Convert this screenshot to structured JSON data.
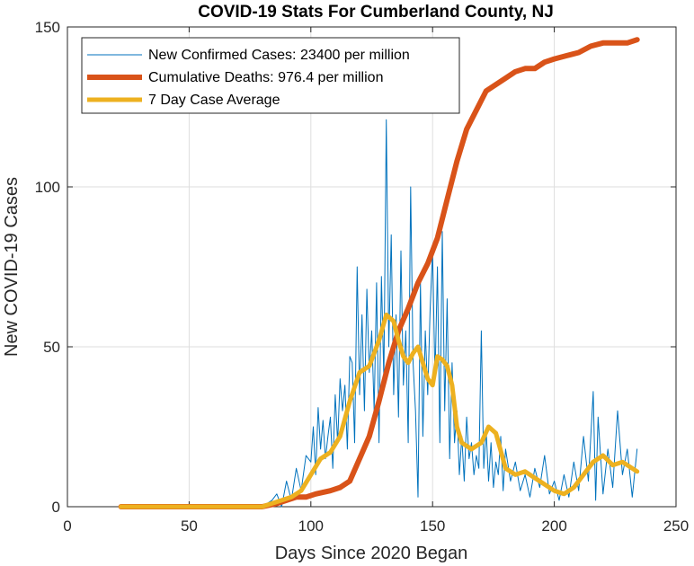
{
  "chart_data": {
    "type": "line",
    "title": "COVID-19 Stats For Cumberland County, NJ",
    "xlabel": "Days Since 2020 Began",
    "ylabel": "New COVID-19 Cases",
    "xlim": [
      0,
      250
    ],
    "ylim": [
      0,
      150
    ],
    "xticks": [
      0,
      50,
      100,
      150,
      200,
      250
    ],
    "yticks": [
      0,
      50,
      100,
      150
    ],
    "grid": true,
    "legend_position": "top-left",
    "series": [
      {
        "name": "New Confirmed Cases: 23400 per million",
        "color": "#0072BD",
        "x": [
          22,
          30,
          40,
          50,
          60,
          70,
          80,
          84,
          86,
          88,
          90,
          92,
          94,
          96,
          98,
          100,
          101,
          102,
          103,
          104,
          105,
          106,
          107,
          108,
          109,
          110,
          111,
          112,
          113,
          114,
          115,
          116,
          117,
          118,
          119,
          120,
          121,
          122,
          123,
          124,
          125,
          126,
          127,
          128,
          129,
          130,
          131,
          132,
          133,
          134,
          135,
          136,
          137,
          138,
          139,
          140,
          141,
          142,
          143,
          144,
          145,
          146,
          147,
          148,
          149,
          150,
          151,
          152,
          153,
          154,
          155,
          156,
          157,
          158,
          159,
          160,
          161,
          162,
          163,
          164,
          165,
          166,
          167,
          168,
          169,
          170,
          171,
          172,
          173,
          174,
          175,
          176,
          177,
          178,
          179,
          180,
          182,
          184,
          186,
          188,
          190,
          192,
          194,
          196,
          198,
          200,
          202,
          204,
          206,
          208,
          210,
          212,
          214,
          216,
          217,
          218,
          220,
          222,
          224,
          226,
          228,
          230,
          232,
          234
        ],
        "y": [
          0,
          0,
          0,
          0,
          0,
          0,
          0,
          2,
          4,
          0,
          8,
          2,
          12,
          5,
          16,
          14,
          25,
          10,
          31,
          18,
          27,
          15,
          22,
          28,
          12,
          35,
          20,
          40,
          30,
          38,
          18,
          47,
          45,
          20,
          75,
          35,
          60,
          30,
          68,
          42,
          55,
          30,
          70,
          20,
          72,
          40,
          121,
          50,
          85,
          35,
          60,
          28,
          80,
          38,
          55,
          20,
          100,
          45,
          30,
          3,
          70,
          22,
          55,
          35,
          62,
          80,
          40,
          75,
          20,
          86,
          30,
          65,
          15,
          45,
          20,
          30,
          10,
          22,
          8,
          28,
          15,
          20,
          10,
          16,
          12,
          55,
          12,
          24,
          8,
          20,
          6,
          14,
          10,
          22,
          5,
          18,
          8,
          14,
          5,
          10,
          3,
          12,
          6,
          16,
          4,
          8,
          2,
          10,
          3,
          14,
          5,
          22,
          8,
          36,
          2,
          28,
          4,
          18,
          6,
          30,
          10,
          18,
          3,
          18
        ]
      },
      {
        "name": "Cumulative Deaths: 976.4 per million",
        "color": "#D95319",
        "x": [
          22,
          60,
          80,
          86,
          90,
          94,
          98,
          102,
          108,
          112,
          116,
          120,
          124,
          128,
          132,
          136,
          140,
          144,
          148,
          152,
          156,
          160,
          164,
          168,
          172,
          176,
          180,
          184,
          188,
          192,
          196,
          200,
          205,
          210,
          215,
          220,
          225,
          230,
          234
        ],
        "y": [
          0,
          0,
          0,
          1,
          2,
          3,
          3,
          4,
          5,
          6,
          8,
          15,
          22,
          33,
          45,
          55,
          62,
          70,
          76,
          84,
          96,
          108,
          118,
          124,
          130,
          132,
          134,
          136,
          137,
          137,
          139,
          140,
          141,
          142,
          144,
          145,
          145,
          145,
          146
        ]
      },
      {
        "name": "7 Day Case Average",
        "color": "#EDB120",
        "x": [
          22,
          40,
          60,
          80,
          84,
          88,
          92,
          96,
          100,
          104,
          108,
          112,
          116,
          120,
          124,
          128,
          131,
          134,
          136,
          138,
          140,
          142,
          144,
          146,
          148,
          150,
          152,
          154,
          156,
          158,
          160,
          162,
          166,
          170,
          173,
          176,
          180,
          184,
          188,
          192,
          196,
          200,
          204,
          208,
          212,
          216,
          220,
          224,
          228,
          232,
          234
        ],
        "y": [
          0,
          0,
          0,
          0,
          1,
          2,
          3,
          5,
          10,
          15,
          17,
          22,
          33,
          42,
          44,
          52,
          60,
          58,
          52,
          47,
          45,
          48,
          50,
          45,
          40,
          38,
          47,
          46,
          44,
          38,
          25,
          20,
          18,
          20,
          25,
          23,
          12,
          10,
          11,
          9,
          7,
          5,
          4,
          6,
          10,
          14,
          16,
          13,
          14,
          12,
          11
        ]
      }
    ]
  }
}
